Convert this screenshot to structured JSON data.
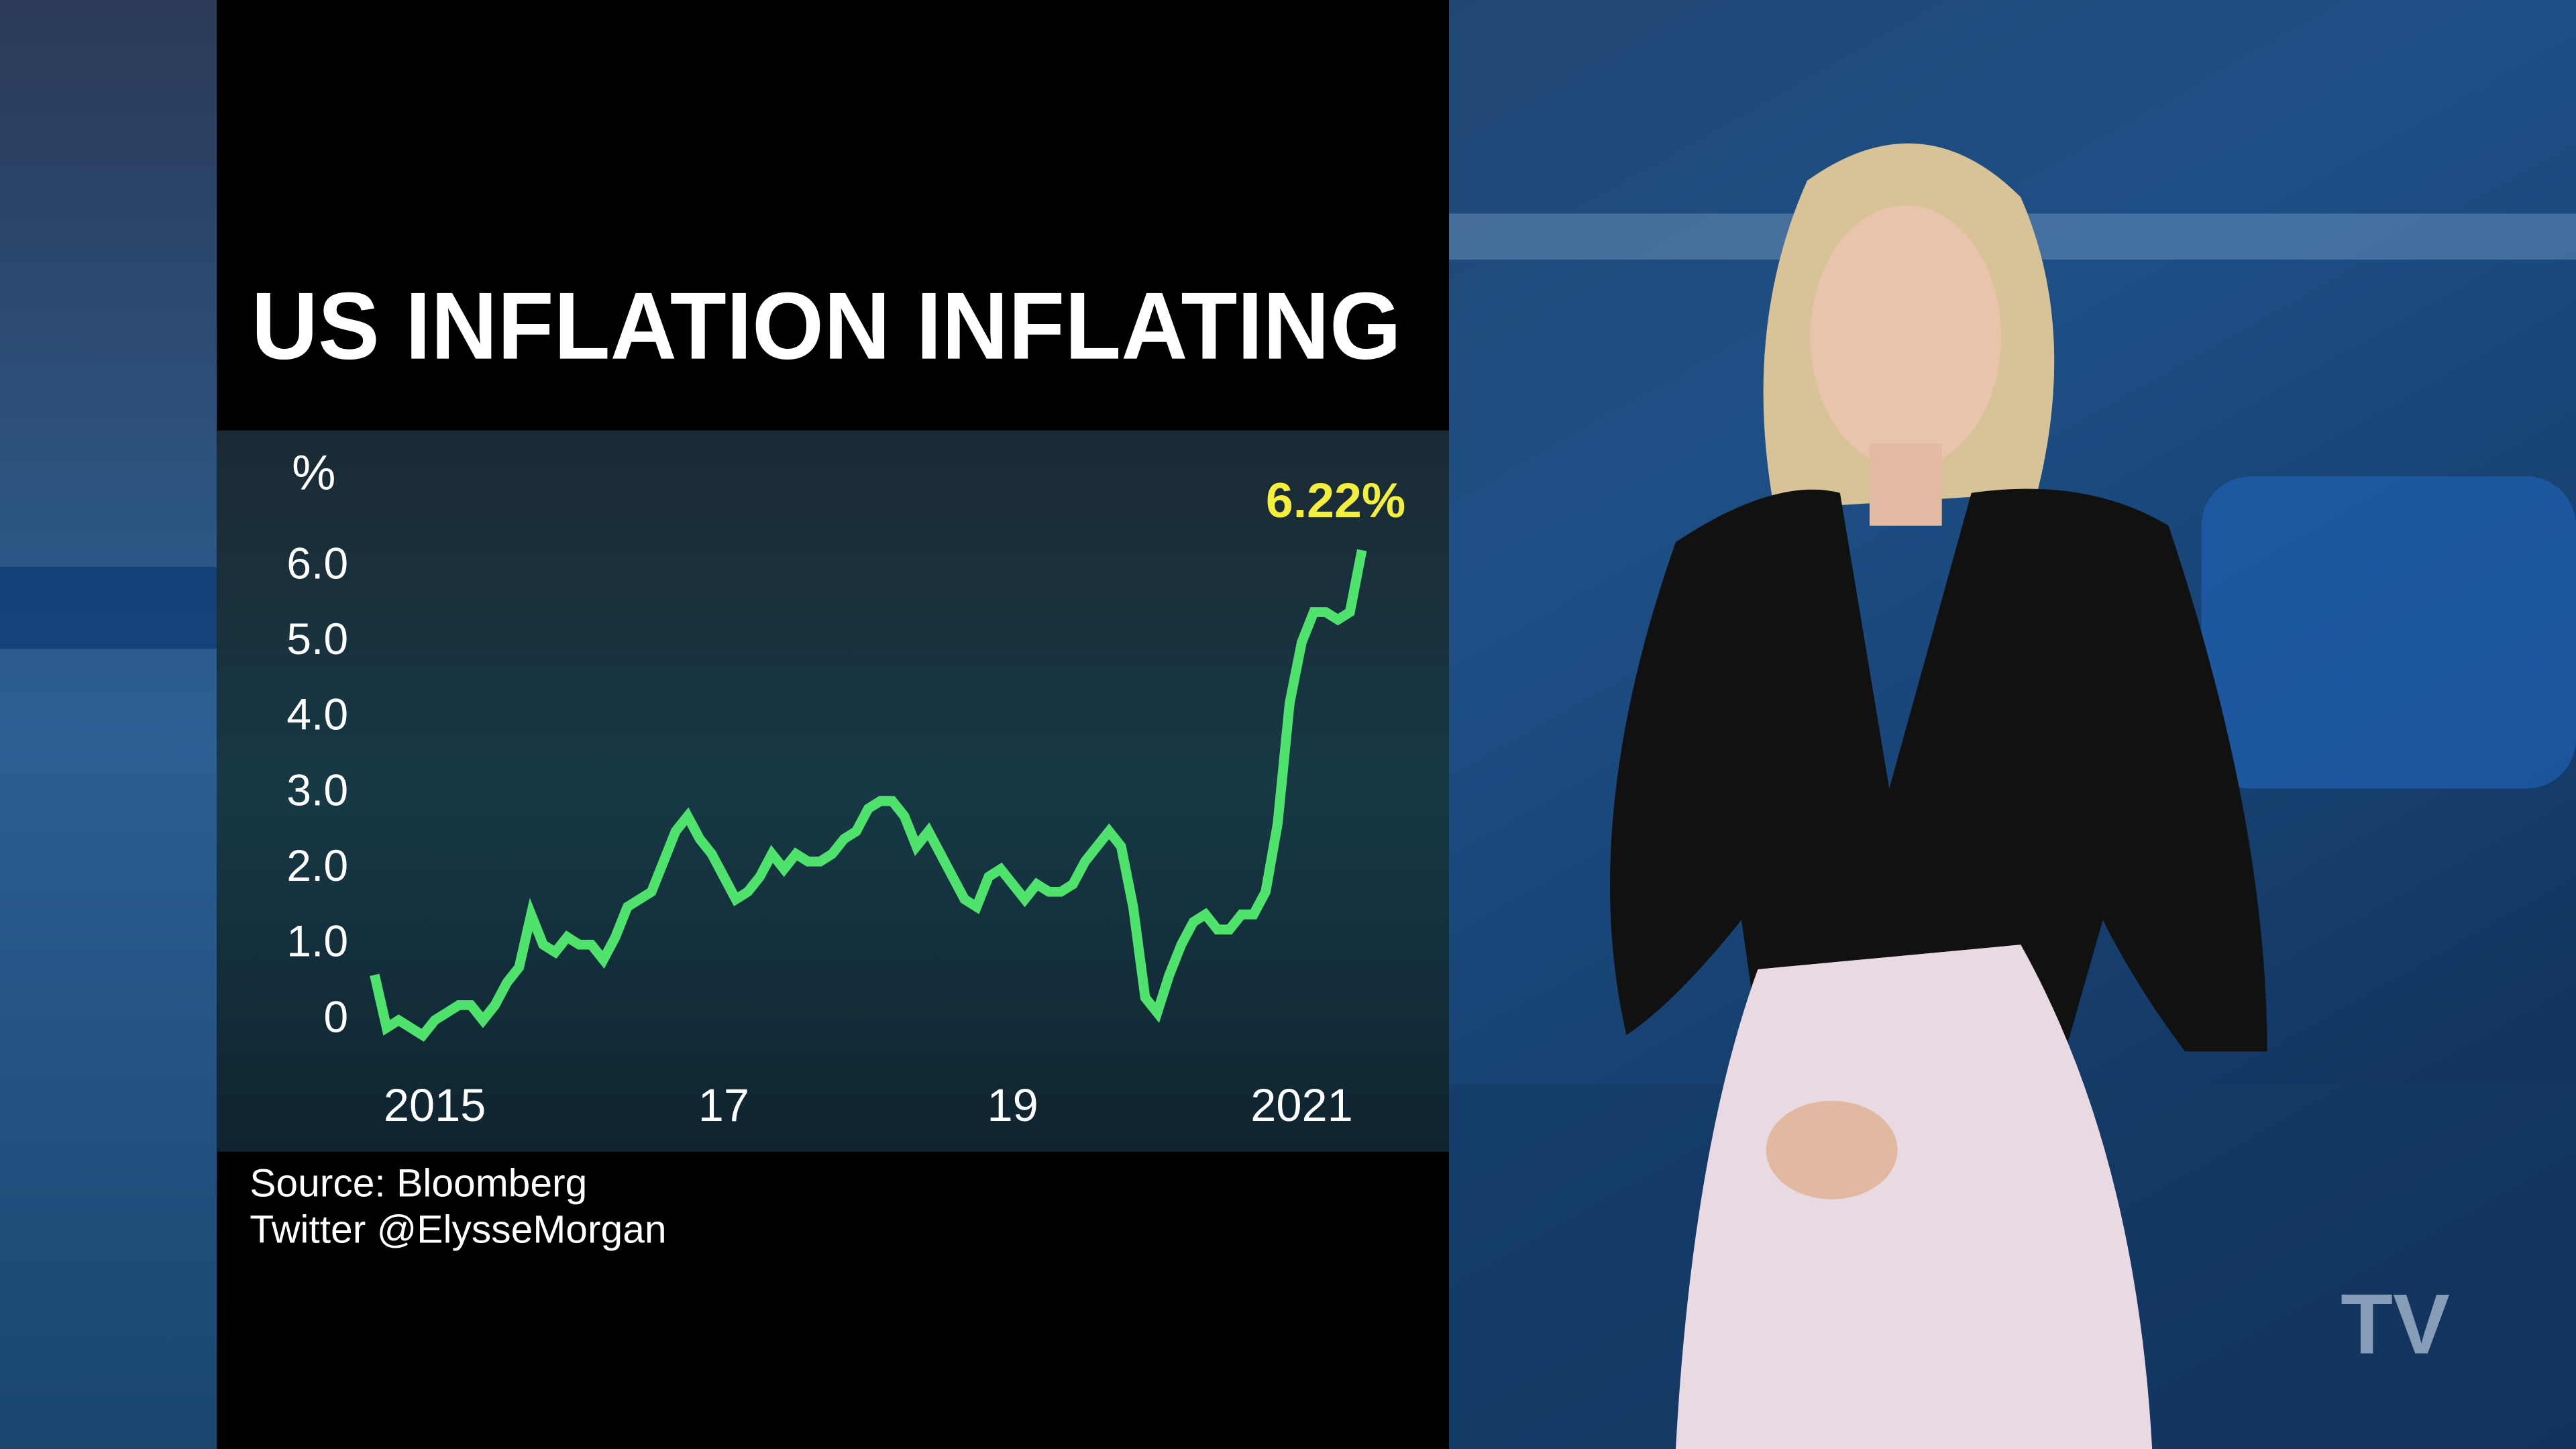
{
  "chart_data": {
    "type": "line",
    "title": "US INFLATION INFLATING",
    "y_label": "%",
    "source": "Source: Bloomberg",
    "credit": "Twitter @ElysseMorgan",
    "logo": "TV",
    "color": "#4fe26c",
    "label_color": "#f4ee3c",
    "categories": [
      null,
      null,
      null,
      null,
      null,
      "2015",
      null,
      null,
      null,
      null,
      null,
      null,
      null,
      null,
      null,
      null,
      null,
      null,
      null,
      null,
      null,
      null,
      null,
      null,
      null,
      null,
      null,
      null,
      null,
      "17",
      null,
      null,
      null,
      null,
      null,
      null,
      null,
      null,
      null,
      null,
      null,
      null,
      null,
      null,
      null,
      null,
      null,
      null,
      null,
      null,
      null,
      null,
      null,
      "19",
      null,
      null,
      null,
      null,
      null,
      null,
      null,
      null,
      null,
      null,
      null,
      null,
      null,
      null,
      null,
      null,
      null,
      null,
      null,
      null,
      null,
      null,
      null,
      "2021",
      null,
      null,
      null,
      null,
      null
    ],
    "values": [
      0.6,
      -0.1,
      0.0,
      -0.1,
      -0.2,
      0.0,
      0.1,
      0.2,
      0.2,
      0.0,
      0.2,
      0.5,
      0.7,
      1.4,
      1.0,
      0.9,
      1.1,
      1.0,
      1.0,
      0.8,
      1.1,
      1.5,
      1.6,
      1.7,
      2.1,
      2.5,
      2.7,
      2.4,
      2.2,
      1.9,
      1.6,
      1.7,
      1.9,
      2.2,
      2.0,
      2.2,
      2.1,
      2.1,
      2.2,
      2.4,
      2.5,
      2.8,
      2.9,
      2.9,
      2.7,
      2.3,
      2.5,
      2.2,
      1.9,
      1.6,
      1.5,
      1.9,
      2.0,
      1.8,
      1.6,
      1.8,
      1.7,
      1.7,
      1.8,
      2.1,
      2.3,
      2.5,
      2.3,
      1.5,
      0.3,
      0.1,
      0.6,
      1.0,
      1.3,
      1.4,
      1.2,
      1.2,
      1.4,
      1.4,
      1.7,
      2.6,
      4.2,
      5.0,
      5.4,
      5.4,
      5.3,
      5.4,
      6.22
    ],
    "value_labels": [
      null,
      null,
      null,
      null,
      null,
      null,
      null,
      null,
      null,
      null,
      null,
      null,
      null,
      null,
      null,
      null,
      null,
      null,
      null,
      null,
      null,
      null,
      null,
      null,
      null,
      null,
      null,
      null,
      null,
      null,
      null,
      null,
      null,
      null,
      null,
      null,
      null,
      null,
      null,
      null,
      null,
      null,
      null,
      null,
      null,
      null,
      null,
      null,
      null,
      null,
      null,
      null,
      null,
      null,
      null,
      null,
      null,
      null,
      null,
      null,
      null,
      null,
      null,
      null,
      null,
      null,
      null,
      null,
      null,
      null,
      null,
      null,
      null,
      null,
      null,
      null,
      null,
      null,
      null,
      null,
      null,
      null,
      "6.22%"
    ],
    "ylim": [
      -0.5,
      6.5
    ],
    "yticks": [
      0,
      {
        "value": 1,
        "label": "1.0"
      },
      {
        "value": 2,
        "label": "2.0"
      },
      {
        "value": 3,
        "label": "3.0"
      },
      {
        "value": 4,
        "label": "4.0"
      },
      {
        "value": 5,
        "label": "5.0"
      },
      {
        "value": 6,
        "label": "6.0"
      }
    ],
    "grid": false
  }
}
